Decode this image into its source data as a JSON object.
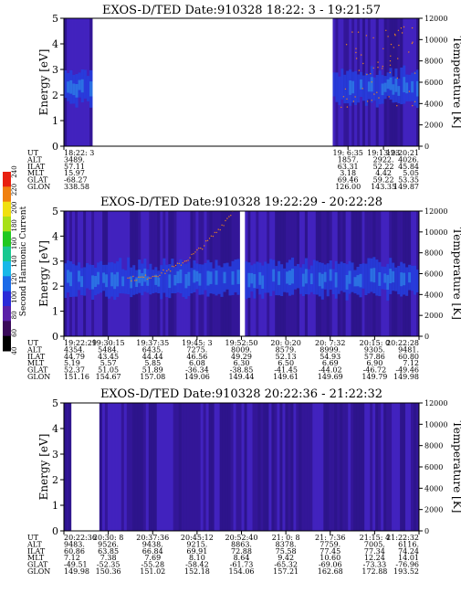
{
  "panels": [
    {
      "title": "EXOS-D/TED   Date:910328  18:22: 3 - 19:21:57",
      "ylabel": "Energy [eV]",
      "y2label": "Temperature [K]",
      "yticks": [
        "0",
        "1",
        "2",
        "3",
        "4",
        "5"
      ],
      "y2ticks": [
        "0",
        "2000",
        "4000",
        "6000",
        "8000",
        "10000",
        "12000"
      ],
      "row_labels": [
        "UT",
        "ALT",
        "ILAT",
        "MLT",
        "GLAT",
        "GLON"
      ],
      "columns": [
        {
          "frac": 0.0,
          "values": [
            "18:22: 3",
            "3489.",
            "57.11",
            "15.97",
            "-68.27",
            "338.58"
          ]
        },
        {
          "frac": 0.8,
          "values": [
            "19: 6:35",
            "1857.",
            "63.31",
            "3.18",
            "69.46",
            "126.00"
          ]
        },
        {
          "frac": 0.9,
          "values": [
            "19:13:23",
            "2922.",
            "52.22",
            "4.42",
            "59.22",
            "143.35"
          ]
        },
        {
          "frac": 1.0,
          "values": [
            "19:20:21",
            "4026.",
            "45.84",
            "5.05",
            "53.35",
            "149.87"
          ]
        }
      ],
      "data_blocks": [
        [
          0.0,
          0.08
        ],
        [
          0.757,
          1.0
        ]
      ]
    },
    {
      "title": "EXOS-D/TED   Date:910328  19:22:29 - 20:22:28",
      "ylabel": "Energy [eV]",
      "y2label": "Temperature [K]",
      "yticks": [
        "0",
        "1",
        "2",
        "3",
        "4",
        "5"
      ],
      "y2ticks": [
        "0",
        "2000",
        "4000",
        "6000",
        "8000",
        "10000",
        "12000"
      ],
      "row_labels": [
        "UT",
        "ALT",
        "ILAT",
        "MLT",
        "GLAT",
        "GLON"
      ],
      "columns": [
        {
          "frac": 0.0,
          "values": [
            "19:22:29",
            "4354.",
            "44.79",
            "5.19",
            "52.37",
            "151.16"
          ]
        },
        {
          "frac": 0.125,
          "values": [
            "19:30:15",
            "5484.",
            "43.45",
            "5.57",
            "51.05",
            "154.67"
          ]
        },
        {
          "frac": 0.25,
          "values": [
            "19:37:35",
            "6435.",
            "44.44",
            "5.85",
            "51.89",
            "157.08"
          ]
        },
        {
          "frac": 0.375,
          "values": [
            "19:45: 3",
            "7275.",
            "46.56",
            "6.08",
            "-36.34",
            "149.06"
          ]
        },
        {
          "frac": 0.5,
          "values": [
            "19:52:50",
            "8009.",
            "49.29",
            "6.30",
            "-38.85",
            "149.44"
          ]
        },
        {
          "frac": 0.625,
          "values": [
            "20: 0:20",
            "8579.",
            "52.13",
            "6.50",
            "-41.45",
            "149.61"
          ]
        },
        {
          "frac": 0.75,
          "values": [
            "20: 7:32",
            "8999.",
            "54.93",
            "6.69",
            "-44.02",
            "149.69"
          ]
        },
        {
          "frac": 0.875,
          "values": [
            "20:15: 0",
            "9305.",
            "57.86",
            "6.90",
            "-46.72",
            "149.79"
          ]
        },
        {
          "frac": 1.0,
          "values": [
            "20:22:28",
            "9481.",
            "60.80",
            "7.12",
            "-49.46",
            "149.98"
          ]
        }
      ],
      "data_blocks": [
        [
          0.0,
          0.495
        ],
        [
          0.51,
          1.0
        ]
      ]
    },
    {
      "title": "EXOS-D/TED   Date:910328  20:22:36 - 21:22:32",
      "ylabel": "Energy [eV]",
      "y2label": "Temperature [K]",
      "yticks": [
        "0",
        "1",
        "2",
        "3",
        "4",
        "5"
      ],
      "y2ticks": [
        "0",
        "2000",
        "4000",
        "6000",
        "8000",
        "10000",
        "12000"
      ],
      "row_labels": [
        "UT",
        "ALT",
        "ILAT",
        "MLT",
        "GLAT",
        "GLON"
      ],
      "columns": [
        {
          "frac": 0.0,
          "values": [
            "20:22:36",
            "9483.",
            "60.86",
            "7.12",
            "-49.51",
            "149.98"
          ]
        },
        {
          "frac": 0.125,
          "values": [
            "20:30: 8",
            "9526.",
            "63.85",
            "7.38",
            "-52.35",
            "150.36"
          ]
        },
        {
          "frac": 0.25,
          "values": [
            "20:37:36",
            "9438.",
            "66.84",
            "7.69",
            "-55.28",
            "151.02"
          ]
        },
        {
          "frac": 0.375,
          "values": [
            "20:45:12",
            "9215.",
            "69.91",
            "8.10",
            "-58.42",
            "152.18"
          ]
        },
        {
          "frac": 0.5,
          "values": [
            "20:52:40",
            "8863.",
            "72.88",
            "8.64",
            "-61.73",
            "154.06"
          ]
        },
        {
          "frac": 0.625,
          "values": [
            "21: 0: 8",
            "8378.",
            "75.58",
            "9.42",
            "-65.32",
            "157.21"
          ]
        },
        {
          "frac": 0.75,
          "values": [
            "21: 7:36",
            "7759.",
            "77.45",
            "10.60",
            "-69.06",
            "162.68"
          ]
        },
        {
          "frac": 0.875,
          "values": [
            "21:15: 4",
            "7005.",
            "77.34",
            "12.24",
            "-73.33",
            "172.88"
          ]
        },
        {
          "frac": 1.0,
          "values": [
            "21:22:32",
            "6116.",
            "74.24",
            "14.01",
            "-76.96",
            "193.52"
          ]
        }
      ],
      "data_blocks": [
        [
          0.0,
          0.02
        ],
        [
          0.1,
          1.0
        ]
      ]
    }
  ],
  "colorbar": {
    "label": "Second Harmonic Current",
    "ticks": [
      "40",
      "60",
      "80",
      "100",
      "120",
      "140",
      "160",
      "180",
      "200",
      "220",
      "240"
    ]
  },
  "chart_data": [
    {
      "type": "heatmap",
      "title": "EXOS-D/TED   Date:910328  18:22: 3 - 19:21:57",
      "xlabel": "UT",
      "ylabel": "Energy [eV]",
      "y2label": "Temperature [K]",
      "ylim": [
        0,
        5
      ],
      "y2lim": [
        0,
        12000
      ],
      "x_ticks": [
        "18:22: 3",
        "19: 6:35",
        "19:13:23",
        "19:20:21"
      ],
      "color_scale": "Second Harmonic Current",
      "color_range": [
        40,
        240
      ]
    },
    {
      "type": "heatmap",
      "title": "EXOS-D/TED   Date:910328  19:22:29 - 20:22:28",
      "xlabel": "UT",
      "ylabel": "Energy [eV]",
      "y2label": "Temperature [K]",
      "ylim": [
        0,
        5
      ],
      "y2lim": [
        0,
        12000
      ],
      "x_ticks": [
        "19:22:29",
        "19:30:15",
        "19:37:35",
        "19:45: 3",
        "19:52:50",
        "20: 0:20",
        "20: 7:32",
        "20:15: 0",
        "20:22:28"
      ],
      "color_scale": "Second Harmonic Current",
      "color_range": [
        40,
        240
      ]
    },
    {
      "type": "heatmap",
      "title": "EXOS-D/TED   Date:910328  20:22:36 - 21:22:32",
      "xlabel": "UT",
      "ylabel": "Energy [eV]",
      "y2label": "Temperature [K]",
      "ylim": [
        0,
        5
      ],
      "y2lim": [
        0,
        12000
      ],
      "x_ticks": [
        "20:22:36",
        "20:30: 8",
        "20:37:36",
        "20:45:12",
        "20:52:40",
        "21: 0: 8",
        "21: 7:36",
        "21:15: 4",
        "21:22:32"
      ],
      "color_scale": "Second Harmonic Current",
      "color_range": [
        40,
        240
      ]
    }
  ]
}
